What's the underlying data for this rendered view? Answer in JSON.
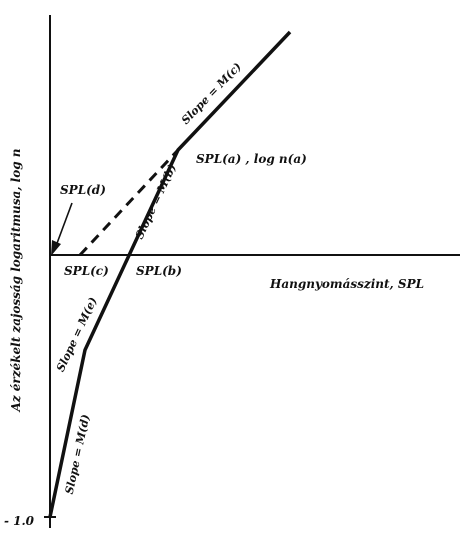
{
  "colors": {
    "ink": "#111111",
    "background": "#ffffff"
  },
  "axes": {
    "y_label": "Az érzékelt zajosság logaritmusa, log n",
    "x_label": "Hangnyomásszint, SPL",
    "y_tick_label": "- 1.0"
  },
  "points": {
    "spl_a": "SPL(a) , log n(a)",
    "spl_b": "SPL(b)",
    "spl_c": "SPL(c)",
    "spl_d": "SPL(d)"
  },
  "segments": {
    "slope_d": "Slope = M(d)",
    "slope_e": "Slope = M(e)",
    "slope_b": "Slope = M(b)",
    "slope_c": "Slope = M(c)"
  }
}
